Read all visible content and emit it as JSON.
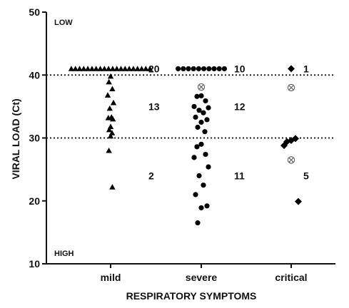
{
  "chart_data": {
    "type": "scatter",
    "xlabel": "RESPIRATORY SYMPTOMS",
    "ylabel": "VIRAL LOAD (Ct)",
    "ylim": [
      10,
      50
    ],
    "yticks": [
      10,
      20,
      30,
      40,
      50
    ],
    "categories": [
      "mild",
      "severe",
      "critical"
    ],
    "corner_labels": {
      "low": "LOW",
      "high": "HIGH"
    },
    "reference_lines": [
      40,
      30
    ],
    "series": [
      {
        "category": "mild",
        "marker": "triangle",
        "values": [
          41,
          41,
          41,
          41,
          41,
          41,
          41,
          41,
          41,
          41,
          41,
          41,
          41,
          41,
          41,
          41,
          41,
          41,
          41,
          41,
          39.8,
          38.9,
          37.8,
          36.8,
          35.6,
          34.7,
          33.3,
          33.2,
          33.0,
          31.8,
          31.3,
          30.8,
          30.3,
          28.0,
          22.2
        ],
        "group_counts": [
          {
            "text": "20",
            "y": 41
          },
          {
            "text": "13",
            "y": 35
          },
          {
            "text": "2",
            "y": 24
          }
        ]
      },
      {
        "category": "severe",
        "marker": "circle",
        "values": [
          41,
          41,
          41,
          41,
          41,
          41,
          41,
          41,
          41,
          41,
          36.7,
          36.6,
          35.9,
          35.0,
          34.8,
          34.4,
          34.0,
          33.3,
          32.9,
          32.5,
          31.7,
          31.0,
          29.0,
          28.6,
          27.4,
          26.9,
          25.4,
          24.0,
          22.5,
          21.0,
          19.2,
          18.9,
          16.5
        ],
        "open_markers": [
          38.1
        ],
        "group_counts": [
          {
            "text": "10",
            "y": 41
          },
          {
            "text": "12",
            "y": 35
          },
          {
            "text": "11",
            "y": 24
          }
        ]
      },
      {
        "category": "critical",
        "marker": "diamond",
        "values": [
          41.0,
          29.6,
          29.4,
          29.9,
          28.8,
          19.9
        ],
        "open_markers": [
          38.0,
          26.5
        ],
        "group_counts": [
          {
            "text": "1",
            "y": 41
          },
          {
            "text": "5",
            "y": 24
          }
        ]
      }
    ]
  }
}
